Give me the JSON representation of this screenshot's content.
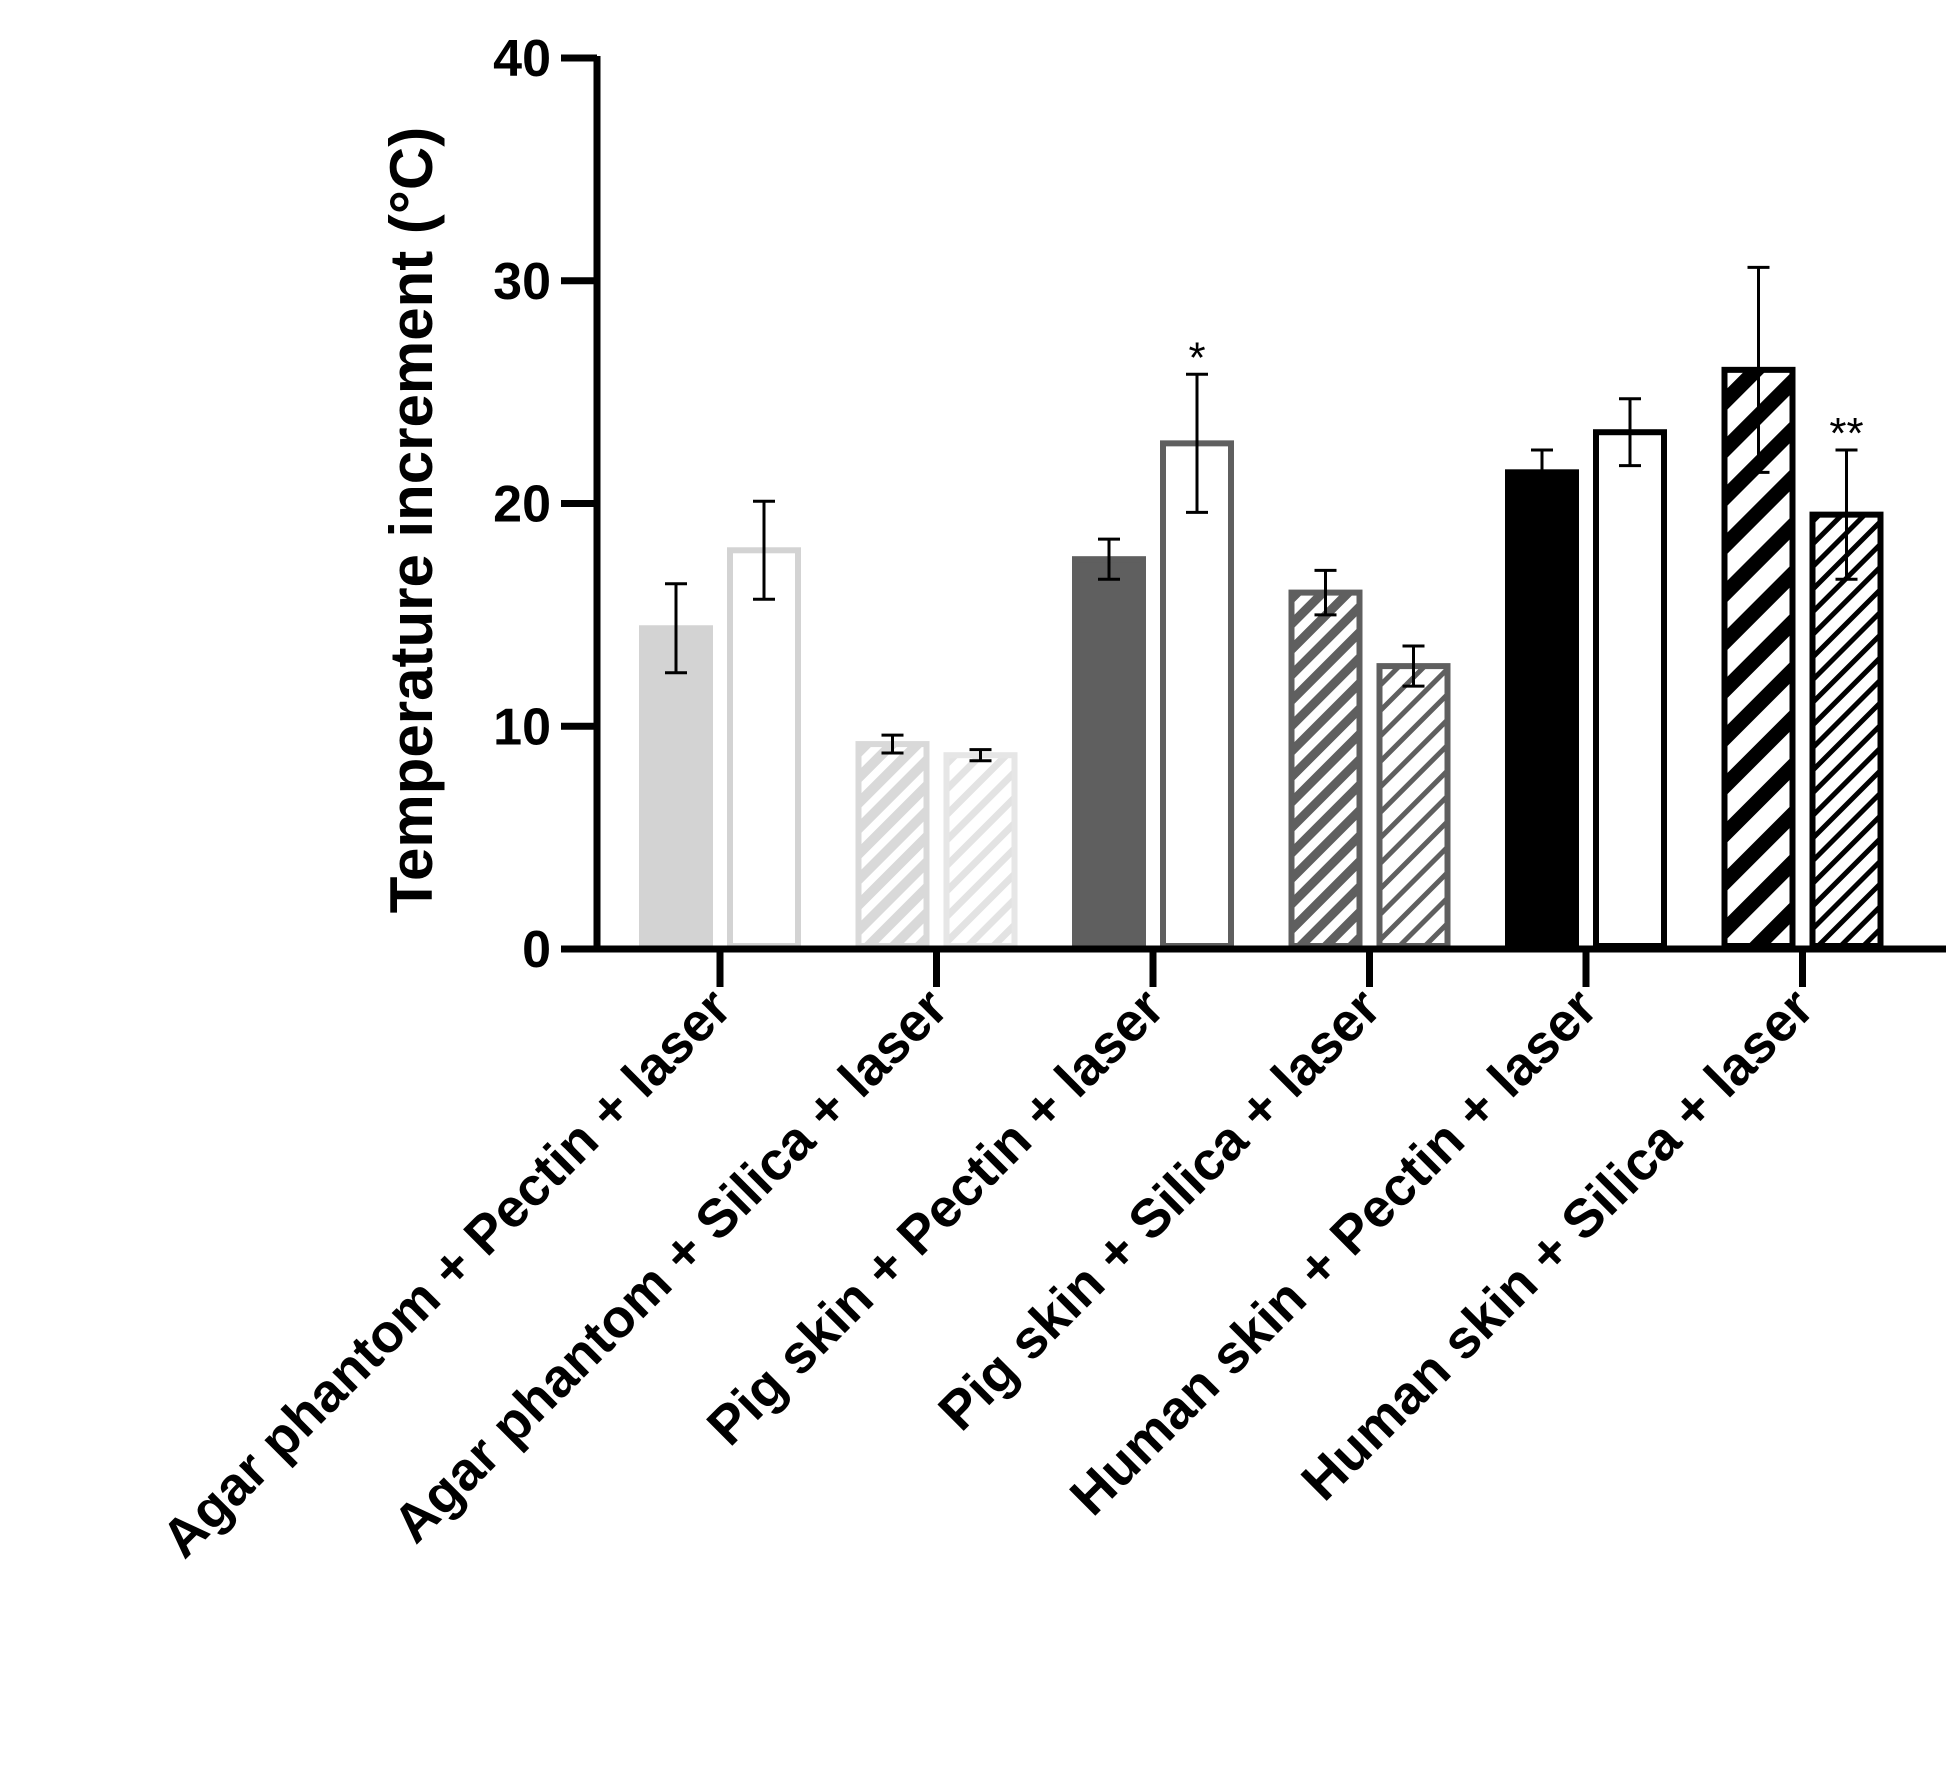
{
  "chart_data": {
    "type": "bar",
    "title": "",
    "xlabel": "",
    "ylabel": "Temperature increment (°C)",
    "ylim": [
      0,
      40
    ],
    "yticks": [
      0,
      10,
      20,
      30,
      40
    ],
    "grid": false,
    "categories": [
      "Agar phantom + Pectin + laser",
      "Agar phantom + Silica + laser",
      "Pig skin + Pectin + laser",
      "Pig skin + Silica + laser",
      "Human skin + Pectin + laser",
      "Human skin + Silica + laser"
    ],
    "bars": [
      {
        "category": 0,
        "series": "first",
        "value": 14.4,
        "error": 2.0,
        "fill": "#d3d3d3",
        "stroke": "#d3d3d3",
        "pattern": "solid",
        "annotation": ""
      },
      {
        "category": 0,
        "series": "second",
        "value": 17.9,
        "error": 2.2,
        "fill": "#ffffff",
        "stroke": "#d3d3d3",
        "pattern": "solid",
        "annotation": ""
      },
      {
        "category": 1,
        "series": "first",
        "value": 9.2,
        "error": 0.4,
        "fill": "#d9d9d9",
        "stroke": "#d9d9d9",
        "pattern": "hatch",
        "annotation": ""
      },
      {
        "category": 1,
        "series": "second",
        "value": 8.7,
        "error": 0.25,
        "fill": "#e6e6e6",
        "stroke": "#e6e6e6",
        "pattern": "hatch-light",
        "annotation": ""
      },
      {
        "category": 2,
        "series": "first",
        "value": 17.5,
        "error": 0.9,
        "fill": "#5f5f5f",
        "stroke": "#5f5f5f",
        "pattern": "solid",
        "annotation": ""
      },
      {
        "category": 2,
        "series": "second",
        "value": 22.7,
        "error": 3.1,
        "fill": "#ffffff",
        "stroke": "#5f5f5f",
        "pattern": "solid",
        "annotation": "*"
      },
      {
        "category": 3,
        "series": "first",
        "value": 16.0,
        "error": 1.0,
        "fill": "#5f5f5f",
        "stroke": "#5f5f5f",
        "pattern": "hatch",
        "annotation": ""
      },
      {
        "category": 3,
        "series": "second",
        "value": 12.7,
        "error": 0.9,
        "fill": "#5f5f5f",
        "stroke": "#5f5f5f",
        "pattern": "hatch-light",
        "annotation": ""
      },
      {
        "category": 4,
        "series": "first",
        "value": 21.4,
        "error": 1.0,
        "fill": "#000000",
        "stroke": "#000000",
        "pattern": "solid",
        "annotation": ""
      },
      {
        "category": 4,
        "series": "second",
        "value": 23.2,
        "error": 1.5,
        "fill": "#ffffff",
        "stroke": "#000000",
        "pattern": "solid",
        "annotation": ""
      },
      {
        "category": 5,
        "series": "first",
        "value": 26.0,
        "error": 4.6,
        "fill": "#000000",
        "stroke": "#000000",
        "pattern": "hatch-bold",
        "annotation": ""
      },
      {
        "category": 5,
        "series": "second",
        "value": 19.5,
        "error": 2.9,
        "fill": "#000000",
        "stroke": "#000000",
        "pattern": "hatch",
        "annotation": "**"
      }
    ]
  }
}
